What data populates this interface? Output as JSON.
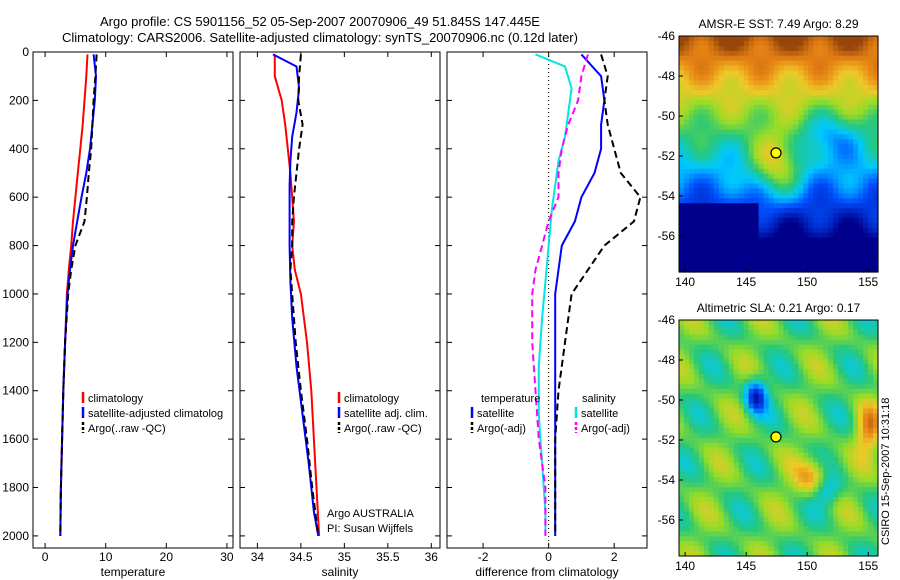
{
  "header": {
    "title_line1": "Argo profile: CS 5901156_52 05-Sep-2007 20070906_49 51.845S 147.445E",
    "title_line2": "Climatology: CARS2006. Satellite-adjusted climatology: synTS_20070906.nc (0.12d later)"
  },
  "colors": {
    "climatology": "#ff0000",
    "satellite": "#0000ff",
    "argo": "#000000",
    "temp_satellite": "#00e5e5",
    "sal_argo": "#ff00ff"
  },
  "chart_data": [
    {
      "type": "line",
      "xlabel": "temperature",
      "ylabel": "",
      "xlim": [
        -2,
        31
      ],
      "ylim": [
        2050,
        0
      ],
      "x_ticks": [
        0,
        10,
        20,
        30
      ],
      "y_ticks": [
        0,
        200,
        400,
        600,
        800,
        1000,
        1200,
        1400,
        1600,
        1800,
        2000
      ],
      "legend": {
        "position": "bottom-left",
        "entries": [
          "climatology",
          "satellite-adjusted climatolog",
          "Argo(..raw -QC)"
        ]
      },
      "series": [
        {
          "name": "climatology",
          "style": "solid",
          "color": "#ff0000",
          "points": [
            [
              7.0,
              10
            ],
            [
              6.8,
              100
            ],
            [
              6.5,
              200
            ],
            [
              6.2,
              300
            ],
            [
              5.8,
              400
            ],
            [
              5.4,
              500
            ],
            [
              5.0,
              600
            ],
            [
              4.6,
              700
            ],
            [
              4.3,
              800
            ],
            [
              3.9,
              900
            ],
            [
              3.6,
              1000
            ],
            [
              3.3,
              1200
            ],
            [
              3.0,
              1400
            ],
            [
              2.8,
              1600
            ],
            [
              2.6,
              1800
            ],
            [
              2.5,
              2000
            ]
          ]
        },
        {
          "name": "satellite-adjusted climatolog",
          "style": "solid",
          "color": "#0000ff",
          "points": [
            [
              8.0,
              10
            ],
            [
              8.4,
              100
            ],
            [
              8.2,
              200
            ],
            [
              7.8,
              300
            ],
            [
              7.4,
              400
            ],
            [
              6.8,
              500
            ],
            [
              6.0,
              600
            ],
            [
              5.3,
              700
            ],
            [
              4.6,
              800
            ],
            [
              4.1,
              900
            ],
            [
              3.7,
              1000
            ],
            [
              3.3,
              1200
            ],
            [
              3.0,
              1400
            ],
            [
              2.8,
              1600
            ],
            [
              2.6,
              1800
            ],
            [
              2.5,
              2000
            ]
          ]
        },
        {
          "name": "Argo(..raw -QC)",
          "style": "dashed",
          "color": "#000000",
          "points": [
            [
              8.5,
              10
            ],
            [
              8.3,
              100
            ],
            [
              8.0,
              200
            ],
            [
              7.8,
              300
            ],
            [
              7.6,
              400
            ],
            [
              7.2,
              500
            ],
            [
              6.9,
              600
            ],
            [
              6.5,
              700
            ],
            [
              5.0,
              800
            ],
            [
              4.3,
              900
            ],
            [
              3.8,
              1000
            ],
            [
              3.3,
              1200
            ],
            [
              3.0,
              1400
            ],
            [
              2.8,
              1600
            ],
            [
              2.6,
              1800
            ],
            [
              2.5,
              2000
            ]
          ]
        }
      ]
    },
    {
      "type": "line",
      "xlabel": "salinity",
      "xlim": [
        33.8,
        36.1
      ],
      "ylim": [
        2050,
        0
      ],
      "x_ticks": [
        34,
        34.5,
        35,
        35.5,
        36
      ],
      "legend": {
        "position": "bottom-right",
        "entries": [
          "climatology",
          "satellite adj. clim.",
          "Argo(..raw -QC)"
        ]
      },
      "annotations": [
        "Argo AUSTRALIA",
        "PI: Susan Wijffels"
      ],
      "series": [
        {
          "name": "climatology",
          "style": "solid",
          "color": "#ff0000",
          "points": [
            [
              34.2,
              10
            ],
            [
              34.2,
              100
            ],
            [
              34.28,
              200
            ],
            [
              34.32,
              300
            ],
            [
              34.35,
              400
            ],
            [
              34.38,
              500
            ],
            [
              34.4,
              600
            ],
            [
              34.42,
              700
            ],
            [
              34.4,
              800
            ],
            [
              34.43,
              900
            ],
            [
              34.5,
              1000
            ],
            [
              34.57,
              1200
            ],
            [
              34.62,
              1400
            ],
            [
              34.65,
              1600
            ],
            [
              34.68,
              1800
            ],
            [
              34.71,
              2000
            ]
          ]
        },
        {
          "name": "satellite adj. clim.",
          "style": "solid",
          "color": "#0000ff",
          "points": [
            [
              34.18,
              10
            ],
            [
              34.45,
              60
            ],
            [
              34.48,
              150
            ],
            [
              34.45,
              250
            ],
            [
              34.4,
              350
            ],
            [
              34.38,
              450
            ],
            [
              34.37,
              550
            ],
            [
              34.37,
              650
            ],
            [
              34.37,
              800
            ],
            [
              34.38,
              950
            ],
            [
              34.4,
              1100
            ],
            [
              34.45,
              1300
            ],
            [
              34.52,
              1500
            ],
            [
              34.59,
              1700
            ],
            [
              34.65,
              1900
            ],
            [
              34.7,
              2000
            ]
          ]
        },
        {
          "name": "Argo(..raw -QC)",
          "style": "dashed",
          "color": "#000000",
          "points": [
            [
              34.5,
              10
            ],
            [
              34.48,
              100
            ],
            [
              34.47,
              200
            ],
            [
              34.52,
              300
            ],
            [
              34.48,
              400
            ],
            [
              34.45,
              500
            ],
            [
              34.42,
              600
            ],
            [
              34.4,
              700
            ],
            [
              34.4,
              800
            ],
            [
              34.38,
              900
            ],
            [
              34.4,
              1000
            ],
            [
              34.44,
              1200
            ],
            [
              34.5,
              1400
            ],
            [
              34.57,
              1600
            ],
            [
              34.63,
              1800
            ],
            [
              34.7,
              2000
            ]
          ]
        }
      ]
    },
    {
      "type": "line",
      "xlabel": "difference from climatology",
      "xlim": [
        -3.1,
        3.0
      ],
      "ylim": [
        2050,
        0
      ],
      "x_ticks": [
        -2,
        0,
        2
      ],
      "legend": {
        "position": "bottom",
        "groups": [
          {
            "heading": "temperature",
            "entries": [
              "satellite",
              "Argo(-adj)"
            ]
          },
          {
            "heading": "salinity",
            "entries": [
              "satellite",
              "Argo(-adj)"
            ]
          }
        ]
      },
      "series": [
        {
          "name": "temperature satellite",
          "style": "solid",
          "color": "#0000ff",
          "points": [
            [
              1.0,
              10
            ],
            [
              1.6,
              100
            ],
            [
              1.7,
              200
            ],
            [
              1.6,
              300
            ],
            [
              1.6,
              400
            ],
            [
              1.4,
              500
            ],
            [
              1.0,
              600
            ],
            [
              0.8,
              700
            ],
            [
              0.4,
              800
            ],
            [
              0.3,
              900
            ],
            [
              0.2,
              1000
            ],
            [
              0.2,
              1200
            ],
            [
              0.2,
              1400
            ],
            [
              0.2,
              1600
            ],
            [
              0.2,
              1800
            ],
            [
              0.2,
              2000
            ]
          ]
        },
        {
          "name": "temperature Argo(-adj)",
          "style": "dashed",
          "color": "#000000",
          "points": [
            [
              1.6,
              10
            ],
            [
              1.8,
              100
            ],
            [
              1.7,
              200
            ],
            [
              1.8,
              300
            ],
            [
              2.0,
              400
            ],
            [
              2.2,
              500
            ],
            [
              2.8,
              600
            ],
            [
              2.6,
              700
            ],
            [
              1.7,
              800
            ],
            [
              1.2,
              900
            ],
            [
              0.7,
              1000
            ],
            [
              0.5,
              1200
            ],
            [
              0.3,
              1400
            ],
            [
              0.2,
              1600
            ],
            [
              0.2,
              1800
            ],
            [
              0.2,
              2000
            ]
          ]
        },
        {
          "name": "salinity satellite",
          "style": "solid",
          "color": "#00e5e5",
          "points": [
            [
              -0.4,
              10
            ],
            [
              0.5,
              60
            ],
            [
              0.7,
              150
            ],
            [
              0.6,
              250
            ],
            [
              0.5,
              350
            ],
            [
              0.3,
              450
            ],
            [
              0.2,
              550
            ],
            [
              0.1,
              650
            ],
            [
              0.0,
              800
            ],
            [
              -0.1,
              950
            ],
            [
              -0.2,
              1100
            ],
            [
              -0.3,
              1300
            ],
            [
              -0.3,
              1500
            ],
            [
              -0.2,
              1700
            ],
            [
              -0.1,
              1900
            ],
            [
              -0.1,
              2000
            ]
          ]
        },
        {
          "name": "salinity Argo(-adj)",
          "style": "dashed",
          "color": "#ff00ff",
          "points": [
            [
              1.2,
              10
            ],
            [
              1.0,
              100
            ],
            [
              0.9,
              200
            ],
            [
              0.6,
              300
            ],
            [
              0.4,
              400
            ],
            [
              0.3,
              500
            ],
            [
              0.3,
              600
            ],
            [
              0.0,
              700
            ],
            [
              -0.2,
              800
            ],
            [
              -0.4,
              900
            ],
            [
              -0.5,
              1000
            ],
            [
              -0.5,
              1200
            ],
            [
              -0.4,
              1400
            ],
            [
              -0.3,
              1600
            ],
            [
              -0.1,
              1800
            ],
            [
              -0.1,
              2000
            ]
          ]
        }
      ]
    },
    {
      "type": "heatmap",
      "title": "AMSR-E SST: 7.49 Argo: 8.29",
      "xlim": [
        139.5,
        155.8
      ],
      "ylim": [
        -57.8,
        -46
      ],
      "x_ticks": [
        140,
        145,
        150,
        155
      ],
      "y_ticks": [
        -46,
        -48,
        -50,
        -52,
        -54,
        -56
      ],
      "marker": {
        "lon": 147.445,
        "lat": -51.845
      }
    },
    {
      "type": "heatmap",
      "title": "Altimetric SLA: 0.21 Argo: 0.17",
      "xlim": [
        139.5,
        155.8
      ],
      "ylim": [
        -57.8,
        -46
      ],
      "x_ticks": [
        140,
        145,
        150,
        155
      ],
      "y_ticks": [
        -46,
        -48,
        -50,
        -52,
        -54,
        -56
      ],
      "marker": {
        "lon": 147.445,
        "lat": -51.845
      }
    }
  ],
  "footer": {
    "stamp": "CSIRO 15-Sep-2007 10:31:18"
  }
}
